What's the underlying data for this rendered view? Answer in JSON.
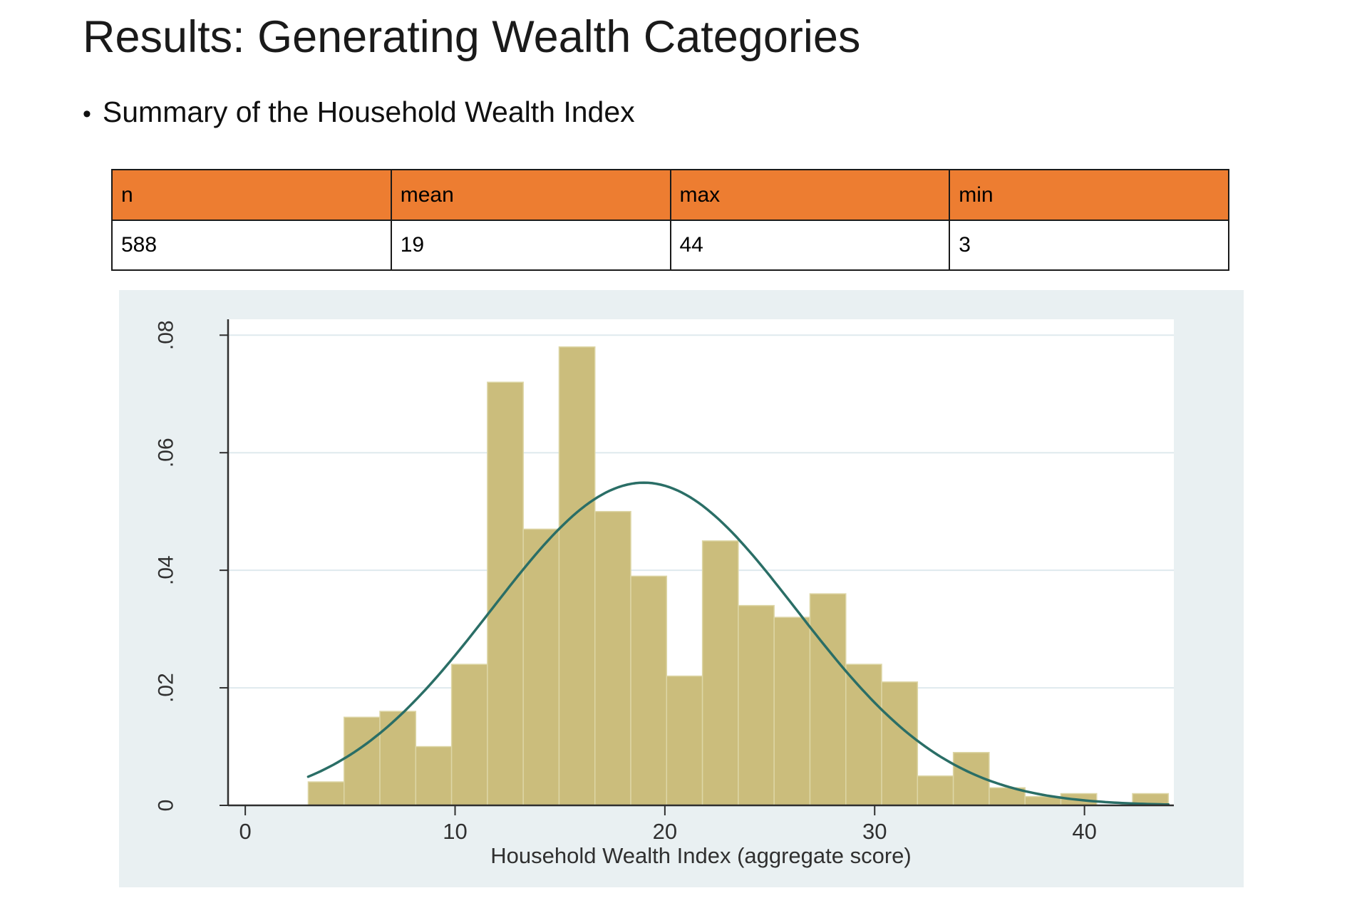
{
  "slide": {
    "title": "Results: Generating Wealth Categories",
    "bullet_marker": "•",
    "bullet": "Summary of the Household Wealth Index"
  },
  "summary_table": {
    "headers": [
      "n",
      "mean",
      "max",
      "min"
    ],
    "values": [
      "588",
      "19",
      "44",
      "3"
    ],
    "header_bg": "#ED7D31"
  },
  "chart_data": {
    "type": "histogram",
    "title": "",
    "xlabel": "Household Wealth Index (aggregate score)",
    "ylabel": "",
    "x_ticks": [
      0,
      10,
      20,
      30,
      40
    ],
    "y_ticks": [
      {
        "v": 0,
        "label": "0"
      },
      {
        "v": 0.02,
        "label": ".02"
      },
      {
        "v": 0.04,
        "label": ".04"
      },
      {
        "v": 0.06,
        "label": ".06"
      },
      {
        "v": 0.08,
        "label": ".08"
      }
    ],
    "xlim": [
      -0.82,
      44.26
    ],
    "ylim": [
      0,
      0.0827
    ],
    "grid": true,
    "legend_position": "none",
    "bins": {
      "start": 3,
      "width": 1.7083,
      "heights": [
        0.004,
        0.015,
        0.016,
        0.01,
        0.024,
        0.072,
        0.047,
        0.078,
        0.05,
        0.039,
        0.022,
        0.045,
        0.034,
        0.032,
        0.036,
        0.024,
        0.021,
        0.005,
        0.009,
        0.003,
        0.0015,
        0.002,
        0,
        0.002
      ]
    },
    "normal_curve": {
      "mean": 19,
      "sd": 7.27,
      "peak_density": 0.0549,
      "range": [
        3,
        44
      ]
    },
    "colors": {
      "bar_fill": "#cbbd7c",
      "bar_edge": "#ddd6a6",
      "curve": "#2a6e66",
      "plot_bg": "#ffffff",
      "chart_bg": "#e9f0f2",
      "gridline": "#dfeaee",
      "axis": "#2f2f2f",
      "tick_text": "#303030"
    }
  }
}
